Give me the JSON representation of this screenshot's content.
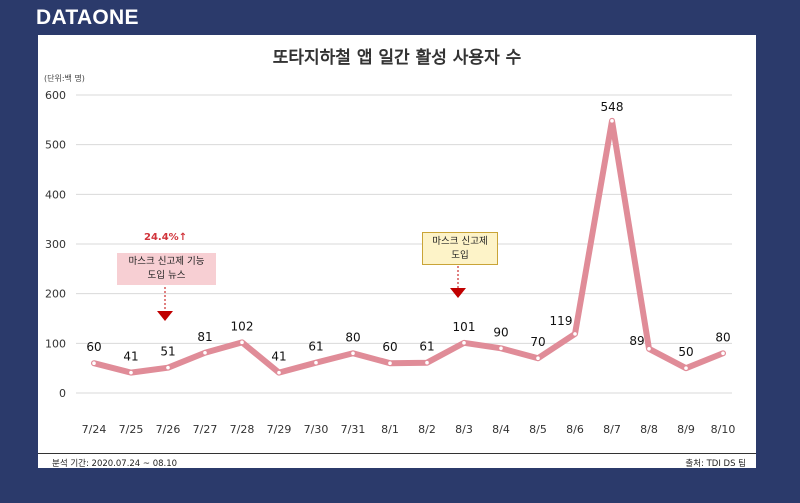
{
  "brand": "DATAONE",
  "footer": {
    "period": "분석 기간: 2020.07.24 ~ 08.10",
    "source": "출처: TDI DS 팀"
  },
  "annotations": {
    "growth": "24.4%↑",
    "note1_line1": "마스크 신고제 기능",
    "note1_line2": "도입 뉴스",
    "note2_line1": "마스크 신고제",
    "note2_line2": "도입"
  },
  "colors": {
    "line": "#e08c98",
    "marker_fill": "#ffffff",
    "arrow": "#c00000",
    "background": "#2b3a6b"
  },
  "chart_data": {
    "type": "line",
    "title": "또타지하철 앱 일간 활성 사용자 수",
    "unit_label": "(단위:백 명)",
    "categories": [
      "7/24",
      "7/25",
      "7/26",
      "7/27",
      "7/28",
      "7/29",
      "7/30",
      "7/31",
      "8/1",
      "8/2",
      "8/3",
      "8/4",
      "8/5",
      "8/6",
      "8/7",
      "8/8",
      "8/9",
      "8/10"
    ],
    "series": [
      {
        "values": [
          60,
          41,
          51,
          81,
          102,
          41,
          61,
          80,
          60,
          61,
          101,
          90,
          70,
          119,
          548,
          89,
          50,
          80
        ]
      }
    ],
    "yticks": [
      0,
      100,
      200,
      300,
      400,
      500,
      600
    ],
    "ylim": [
      0,
      600
    ],
    "grid": true
  }
}
